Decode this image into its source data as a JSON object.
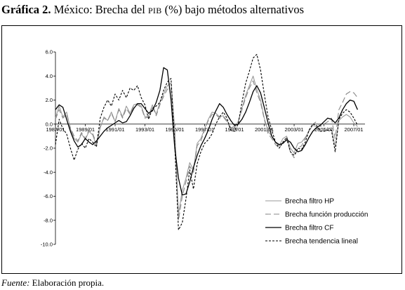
{
  "header": {
    "lead": "Gráfica 2.",
    "pre": " México: Brecha del ",
    "sc": "PIB",
    "post": " (%) bajo métodos alternativos"
  },
  "footer": {
    "label": "Fuente:",
    "text": " Elaboración propia."
  },
  "chart_data": {
    "type": "line",
    "ylim": [
      -10.0,
      6.0
    ],
    "yticks": [
      "6.0",
      "4.0",
      "2.0",
      "0.0",
      "-2.0",
      "-4.0",
      "-6.0",
      "-8.0",
      "-10.0"
    ],
    "ytick_values": [
      6,
      4,
      2,
      0,
      -2,
      -4,
      -6,
      -8,
      -10
    ],
    "xticks": [
      "1987/01",
      "1989/01",
      "1991/01",
      "1993/01",
      "1995/01",
      "1997/01",
      "1999/01",
      "2001/01",
      "2003/01",
      "2005/01",
      "2007/01"
    ],
    "xtick_values": [
      1987.0,
      1989.0,
      1991.0,
      1993.0,
      1995.0,
      1997.0,
      1999.0,
      2001.0,
      2003.0,
      2005.0,
      2007.0
    ],
    "xlim": [
      1987.0,
      2007.75
    ],
    "legend_position": "bottom-right",
    "series": [
      {
        "name": "Brecha filtro HP",
        "color": "#9a9a9a",
        "dash": "",
        "x": [
          1987.0,
          1987.25,
          1987.5,
          1987.75,
          1988.0,
          1988.25,
          1988.5,
          1988.75,
          1989.0,
          1989.25,
          1989.5,
          1989.75,
          1990.0,
          1990.25,
          1990.5,
          1990.75,
          1991.0,
          1991.25,
          1991.5,
          1991.75,
          1992.0,
          1992.25,
          1992.5,
          1992.75,
          1993.0,
          1993.25,
          1993.5,
          1993.75,
          1994.0,
          1994.25,
          1994.5,
          1994.75,
          1995.0,
          1995.25,
          1995.5,
          1995.75,
          1996.0,
          1996.25,
          1996.5,
          1996.75,
          1997.0,
          1997.25,
          1997.5,
          1997.75,
          1998.0,
          1998.25,
          1998.5,
          1998.75,
          1999.0,
          1999.25,
          1999.5,
          1999.75,
          2000.0,
          2000.25,
          2000.5,
          2000.75,
          2001.0,
          2001.25,
          2001.5,
          2001.75,
          2002.0,
          2002.25,
          2002.5,
          2002.75,
          2003.0,
          2003.25,
          2003.5,
          2003.75,
          2004.0,
          2004.25,
          2004.5,
          2004.75,
          2005.0,
          2005.25,
          2005.5,
          2005.75,
          2006.0,
          2006.25,
          2006.5,
          2006.75,
          2007.0,
          2007.25
        ],
        "y": [
          0.5,
          1.5,
          0.6,
          1.0,
          -0.4,
          -1.2,
          -1.5,
          -0.8,
          -1.3,
          -0.6,
          -0.9,
          -1.8,
          -0.3,
          0.6,
          0.3,
          1.0,
          0.2,
          1.3,
          0.6,
          1.5,
          0.9,
          1.6,
          1.7,
          1.5,
          0.6,
          0.7,
          1.6,
          0.8,
          1.8,
          2.5,
          3.2,
          3.4,
          -0.5,
          -7.5,
          -5.5,
          -4.5,
          -3.2,
          -3.8,
          -1.6,
          -1.2,
          -0.4,
          0.4,
          1.0,
          0.9,
          0.6,
          0.7,
          0.3,
          -0.3,
          -0.2,
          0.2,
          1.3,
          2.4,
          3.2,
          4.0,
          2.9,
          2.0,
          0.5,
          -0.6,
          -1.0,
          -1.5,
          -1.8,
          -1.2,
          -1.0,
          -2.0,
          -2.4,
          -1.6,
          -1.5,
          -1.1,
          -0.6,
          -0.1,
          -0.2,
          -0.6,
          -0.5,
          -0.4,
          -0.3,
          -1.9,
          0.3,
          0.6,
          0.8,
          0.6,
          0.1,
          -0.2
        ]
      },
      {
        "name": "Brecha función producción",
        "color": "#888888",
        "dash": "8 4",
        "x": [
          1987.0,
          1987.25,
          1987.5,
          1987.75,
          1988.0,
          1988.25,
          1988.5,
          1988.75,
          1989.0,
          1989.25,
          1989.5,
          1989.75,
          1990.0,
          1990.25,
          1990.5,
          1990.75,
          1991.0,
          1991.25,
          1991.5,
          1991.75,
          1992.0,
          1992.25,
          1992.5,
          1992.75,
          1993.0,
          1993.25,
          1993.5,
          1993.75,
          1994.0,
          1994.25,
          1994.5,
          1994.75,
          1995.0,
          1995.25,
          1995.5,
          1995.75,
          1996.0,
          1996.25,
          1996.5,
          1996.75,
          1997.0,
          1997.25,
          1997.5,
          1997.75,
          1998.0,
          1998.25,
          1998.5,
          1998.75,
          1999.0,
          1999.25,
          1999.5,
          1999.75,
          2000.0,
          2000.25,
          2000.5,
          2000.75,
          2001.0,
          2001.25,
          2001.5,
          2001.75,
          2002.0,
          2002.25,
          2002.5,
          2002.75,
          2003.0,
          2003.25,
          2003.5,
          2003.75,
          2004.0,
          2004.25,
          2004.5,
          2004.75,
          2005.0,
          2005.25,
          2005.5,
          2005.75,
          2006.0,
          2006.25,
          2006.5,
          2006.75,
          2007.0,
          2007.25
        ],
        "y": [
          0.4,
          1.2,
          0.5,
          0.8,
          -0.3,
          -1.0,
          -1.4,
          -0.7,
          -1.2,
          -0.5,
          -0.8,
          -1.6,
          -0.2,
          0.5,
          0.3,
          0.9,
          0.2,
          1.2,
          0.5,
          1.3,
          0.8,
          1.5,
          1.6,
          1.4,
          0.5,
          0.6,
          1.5,
          0.7,
          1.6,
          2.3,
          2.9,
          3.0,
          -0.8,
          -8.0,
          -6.0,
          -4.8,
          -3.5,
          -4.0,
          -1.8,
          -1.4,
          -0.5,
          0.3,
          0.8,
          0.8,
          0.5,
          0.6,
          0.2,
          -0.4,
          -0.3,
          0.2,
          1.2,
          2.2,
          3.0,
          3.6,
          2.6,
          1.8,
          0.4,
          -0.8,
          -1.2,
          -1.7,
          -2.0,
          -1.5,
          -1.3,
          -2.3,
          -2.8,
          -2.0,
          -1.8,
          -1.2,
          -0.5,
          0.0,
          0.2,
          -0.2,
          0.0,
          0.2,
          0.5,
          -1.2,
          1.2,
          1.8,
          2.5,
          2.7,
          2.6,
          2.2
        ]
      },
      {
        "name": "Brecha filtro CF",
        "color": "#000000",
        "dash": "",
        "x": [
          1987.0,
          1987.25,
          1987.5,
          1987.75,
          1988.0,
          1988.25,
          1988.5,
          1988.75,
          1989.0,
          1989.25,
          1989.5,
          1989.75,
          1990.0,
          1990.25,
          1990.5,
          1990.75,
          1991.0,
          1991.25,
          1991.5,
          1991.75,
          1992.0,
          1992.25,
          1992.5,
          1992.75,
          1993.0,
          1993.25,
          1993.5,
          1993.75,
          1994.0,
          1994.25,
          1994.5,
          1994.75,
          1995.0,
          1995.25,
          1995.5,
          1995.75,
          1996.0,
          1996.25,
          1996.5,
          1996.75,
          1997.0,
          1997.25,
          1997.5,
          1997.75,
          1998.0,
          1998.25,
          1998.5,
          1998.75,
          1999.0,
          1999.25,
          1999.5,
          1999.75,
          2000.0,
          2000.25,
          2000.5,
          2000.75,
          2001.0,
          2001.25,
          2001.5,
          2001.75,
          2002.0,
          2002.25,
          2002.5,
          2002.75,
          2003.0,
          2003.25,
          2003.5,
          2003.75,
          2004.0,
          2004.25,
          2004.5,
          2004.75,
          2005.0,
          2005.25,
          2005.5,
          2005.75,
          2006.0,
          2006.25,
          2006.5,
          2006.75,
          2007.0,
          2007.25
        ],
        "y": [
          1.2,
          1.6,
          1.4,
          0.4,
          -0.6,
          -1.4,
          -1.9,
          -1.7,
          -1.2,
          -1.5,
          -1.7,
          -1.4,
          -1.0,
          -0.6,
          -0.3,
          -0.1,
          0.1,
          0.3,
          0.1,
          0.2,
          0.7,
          1.3,
          1.7,
          1.7,
          1.3,
          0.9,
          1.1,
          1.8,
          2.8,
          4.7,
          4.5,
          2.0,
          -2.0,
          -4.5,
          -5.9,
          -5.8,
          -4.8,
          -3.6,
          -2.6,
          -1.8,
          -1.2,
          -0.5,
          0.4,
          1.1,
          1.7,
          1.4,
          0.8,
          0.3,
          -0.1,
          0.0,
          0.4,
          1.0,
          1.8,
          2.7,
          3.2,
          2.6,
          1.4,
          0.1,
          -1.0,
          -1.5,
          -1.7,
          -1.6,
          -1.3,
          -1.5,
          -2.0,
          -2.3,
          -2.2,
          -1.7,
          -1.1,
          -0.6,
          -0.3,
          -0.1,
          0.2,
          0.5,
          0.4,
          0.1,
          0.5,
          1.2,
          1.7,
          2.0,
          1.9,
          1.2
        ]
      },
      {
        "name": "Brecha tendencia lineal",
        "color": "#000000",
        "dash": "3 2",
        "x": [
          1987.0,
          1987.25,
          1987.5,
          1987.75,
          1988.0,
          1988.25,
          1988.5,
          1988.75,
          1989.0,
          1989.25,
          1989.5,
          1989.75,
          1990.0,
          1990.25,
          1990.5,
          1990.75,
          1991.0,
          1991.25,
          1991.5,
          1991.75,
          1992.0,
          1992.25,
          1992.5,
          1992.75,
          1993.0,
          1993.25,
          1993.5,
          1993.75,
          1994.0,
          1994.25,
          1994.5,
          1994.75,
          1995.0,
          1995.25,
          1995.5,
          1995.75,
          1996.0,
          1996.25,
          1996.5,
          1996.75,
          1997.0,
          1997.25,
          1997.5,
          1997.75,
          1998.0,
          1998.25,
          1998.5,
          1998.75,
          1999.0,
          1999.25,
          1999.5,
          1999.75,
          2000.0,
          2000.25,
          2000.5,
          2000.75,
          2001.0,
          2001.25,
          2001.5,
          2001.75,
          2002.0,
          2002.25,
          2002.5,
          2002.75,
          2003.0,
          2003.25,
          2003.5,
          2003.75,
          2004.0,
          2004.25,
          2004.5,
          2004.75,
          2005.0,
          2005.25,
          2005.5,
          2005.75,
          2006.0,
          2006.25,
          2006.5,
          2006.75,
          2007.0,
          2007.25
        ],
        "y": [
          -1.7,
          0.4,
          -0.4,
          -0.8,
          -2.0,
          -3.0,
          -2.1,
          -1.6,
          -2.0,
          -1.2,
          -1.5,
          -1.9,
          0.5,
          1.4,
          2.0,
          1.5,
          2.5,
          2.0,
          2.8,
          2.2,
          3.0,
          2.8,
          3.2,
          2.2,
          1.6,
          0.4,
          1.3,
          1.5,
          1.8,
          2.8,
          3.5,
          3.8,
          -1.8,
          -8.8,
          -8.2,
          -6.2,
          -3.8,
          -5.4,
          -3.3,
          -2.3,
          -1.6,
          -1.3,
          -0.8,
          0.0,
          0.6,
          1.0,
          0.5,
          -0.5,
          -0.6,
          0.0,
          1.8,
          3.4,
          4.4,
          5.5,
          5.8,
          4.5,
          2.5,
          0.6,
          -0.5,
          -1.5,
          -2.0,
          -1.5,
          -1.1,
          -2.3,
          -2.6,
          -2.0,
          -2.1,
          -1.5,
          -0.5,
          0.0,
          -0.1,
          -0.6,
          -0.6,
          -0.5,
          -0.5,
          -2.3,
          0.4,
          0.9,
          1.2,
          1.0,
          0.5,
          -0.1
        ]
      }
    ]
  }
}
